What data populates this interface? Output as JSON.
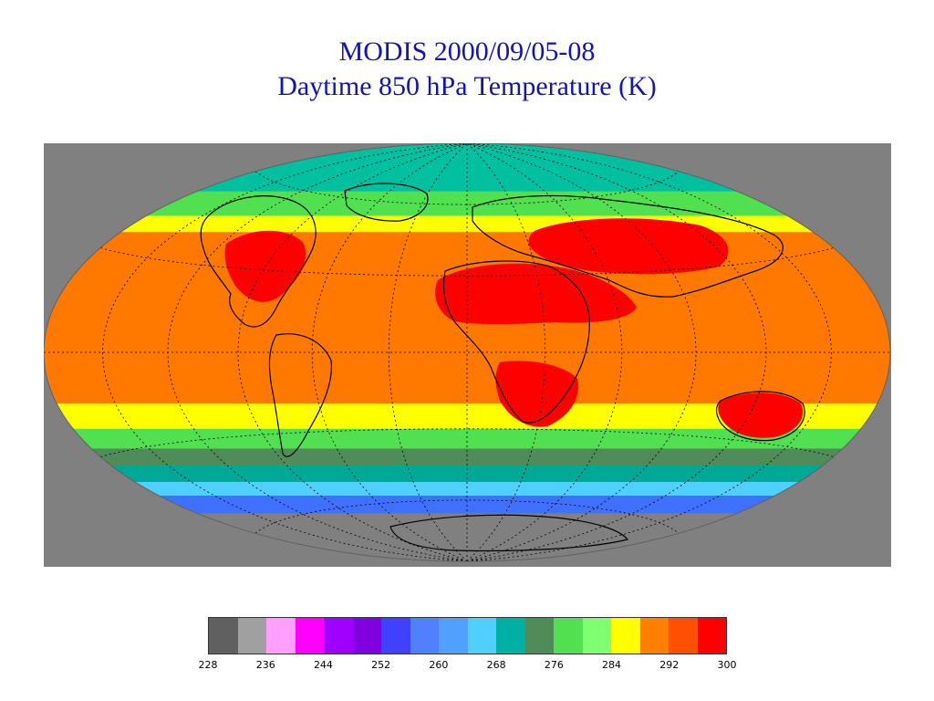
{
  "title": {
    "line1": "MODIS 2000/09/05-08",
    "line2": "Daytime 850 hPa Temperature (K)"
  },
  "map": {
    "projection": "Hammer-Aitoff (global, oval)",
    "background_color": "#808080",
    "graticule": "dotted",
    "coastlines": "black",
    "bands": [
      {
        "lat_from": 90,
        "lat_to": 66,
        "color": "#00c0a0",
        "label": "arctic"
      },
      {
        "lat_from": 66,
        "lat_to": 55,
        "color": "#50e050"
      },
      {
        "lat_from": 55,
        "lat_to": 48,
        "color": "#ffff00"
      },
      {
        "lat_from": 48,
        "lat_to": -20,
        "color": "#ff7800"
      },
      {
        "lat_from": -20,
        "lat_to": -30,
        "color": "#ffff00"
      },
      {
        "lat_from": -30,
        "lat_to": -38,
        "color": "#50e050"
      },
      {
        "lat_from": -38,
        "lat_to": -45,
        "color": "#508c5a"
      },
      {
        "lat_from": -45,
        "lat_to": -52,
        "color": "#00a898"
      },
      {
        "lat_from": -52,
        "lat_to": -58,
        "color": "#50d0ff"
      },
      {
        "lat_from": -58,
        "lat_to": -66,
        "color": "#4070ff"
      },
      {
        "lat_from": -66,
        "lat_to": -90,
        "color": "#808080"
      }
    ],
    "hot_regions": [
      {
        "name": "Sahara / Arabia",
        "color": "#ff0000"
      },
      {
        "name": "Central Asia",
        "color": "#ff0000"
      },
      {
        "name": "Western North America",
        "color": "#ff0000"
      },
      {
        "name": "Southern Africa",
        "color": "#ff0000"
      },
      {
        "name": "Australia",
        "color": "#ff0000"
      }
    ]
  },
  "colorbar": {
    "colors": [
      "#606060",
      "#a0a0a0",
      "#ffa0ff",
      "#ff00ff",
      "#a000ff",
      "#8000e0",
      "#4040ff",
      "#5080ff",
      "#50a0ff",
      "#50d0ff",
      "#00b0a0",
      "#508c5a",
      "#50e050",
      "#80ff70",
      "#ffff00",
      "#ff8000",
      "#ff5000",
      "#ff0000"
    ],
    "tick_labels": [
      "228",
      "236",
      "244",
      "252",
      "260",
      "268",
      "276",
      "284",
      "292",
      "300"
    ],
    "range": [
      228,
      300
    ],
    "step": 4,
    "units": "K"
  }
}
